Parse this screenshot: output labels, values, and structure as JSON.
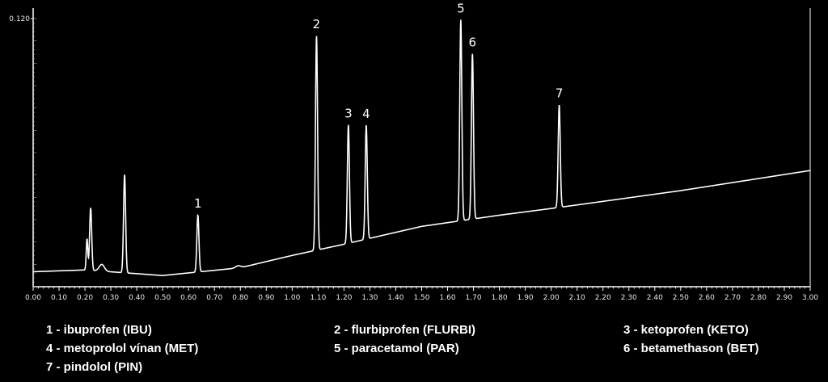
{
  "chart_data": {
    "type": "line",
    "xlim": [
      0.0,
      3.0
    ],
    "ylim": [
      0.0,
      0.12
    ],
    "x_ticks": [
      "0.00",
      "0.10",
      "0.20",
      "0.30",
      "0.40",
      "0.50",
      "0.60",
      "0.70",
      "0.80",
      "0.90",
      "1.00",
      "1.10",
      "1.20",
      "1.30",
      "1.40",
      "1.50",
      "1.60",
      "1.70",
      "1.80",
      "1.90",
      "2.00",
      "2.10",
      "2.20",
      "2.30",
      "2.40",
      "2.50",
      "2.60",
      "2.70",
      "2.80",
      "2.90",
      "3.00"
    ],
    "y_ticks": [
      "0.120"
    ],
    "grid": false,
    "line_color": "#ffffff",
    "background": "#000000",
    "baseline": [
      {
        "x": 0.0,
        "y": 0.0067
      },
      {
        "x": 0.2,
        "y": 0.0075
      },
      {
        "x": 0.5,
        "y": 0.005
      },
      {
        "x": 0.8,
        "y": 0.0085
      },
      {
        "x": 1.0,
        "y": 0.014
      },
      {
        "x": 1.2,
        "y": 0.019
      },
      {
        "x": 1.5,
        "y": 0.027
      },
      {
        "x": 1.8,
        "y": 0.032
      },
      {
        "x": 2.0,
        "y": 0.035
      },
      {
        "x": 2.5,
        "y": 0.043
      },
      {
        "x": 3.0,
        "y": 0.052
      }
    ],
    "peaks": [
      {
        "x": 0.208,
        "height": 0.014,
        "width": 0.003,
        "label": ""
      },
      {
        "x": 0.222,
        "height": 0.028,
        "width": 0.004,
        "label": ""
      },
      {
        "x": 0.265,
        "height": 0.003,
        "width": 0.01,
        "label": ""
      },
      {
        "x": 0.353,
        "height": 0.044,
        "width": 0.004,
        "label": ""
      },
      {
        "x": 0.636,
        "height": 0.0255,
        "width": 0.004,
        "label": "1"
      },
      {
        "x": 0.792,
        "height": 0.001,
        "width": 0.01,
        "label": ""
      },
      {
        "x": 1.094,
        "height": 0.096,
        "width": 0.004,
        "label": "2"
      },
      {
        "x": 1.217,
        "height": 0.053,
        "width": 0.004,
        "label": "3"
      },
      {
        "x": 1.286,
        "height": 0.051,
        "width": 0.004,
        "label": "4"
      },
      {
        "x": 1.651,
        "height": 0.09,
        "width": 0.004,
        "label": "5"
      },
      {
        "x": 1.696,
        "height": 0.074,
        "width": 0.004,
        "label": "6"
      },
      {
        "x": 2.031,
        "height": 0.046,
        "width": 0.004,
        "label": "7"
      }
    ]
  },
  "legend": {
    "items": [
      "1 - ibuprofen (IBU)",
      "2 - flurbiprofen (FLURBI)",
      "3 - ketoprofen (KETO)",
      "4 - metoprolol vínan (MET)",
      "5 - paracetamol (PAR)",
      "6 - betamethason (BET)",
      "7 - pindolol  (PIN)"
    ]
  }
}
